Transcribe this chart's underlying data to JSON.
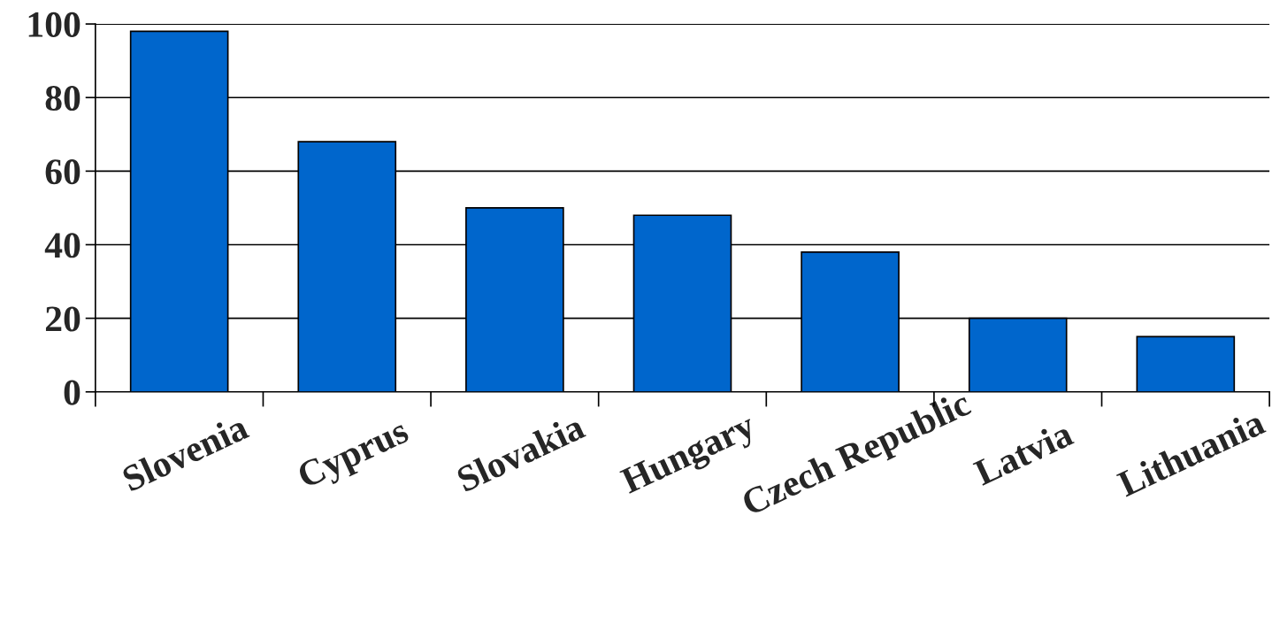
{
  "chart_data": {
    "type": "bar",
    "categories": [
      "Slovenia",
      "Cyprus",
      "Slovakia",
      "Hungary",
      "Czech Republic",
      "Latvia",
      "Lithuania"
    ],
    "values": [
      98,
      68,
      50,
      48,
      38,
      20,
      15
    ],
    "color": "#0066cc",
    "ylim": [
      0,
      100
    ],
    "yticks": [
      0,
      20,
      40,
      60,
      80,
      100
    ],
    "grid": "y",
    "legend": false
  }
}
